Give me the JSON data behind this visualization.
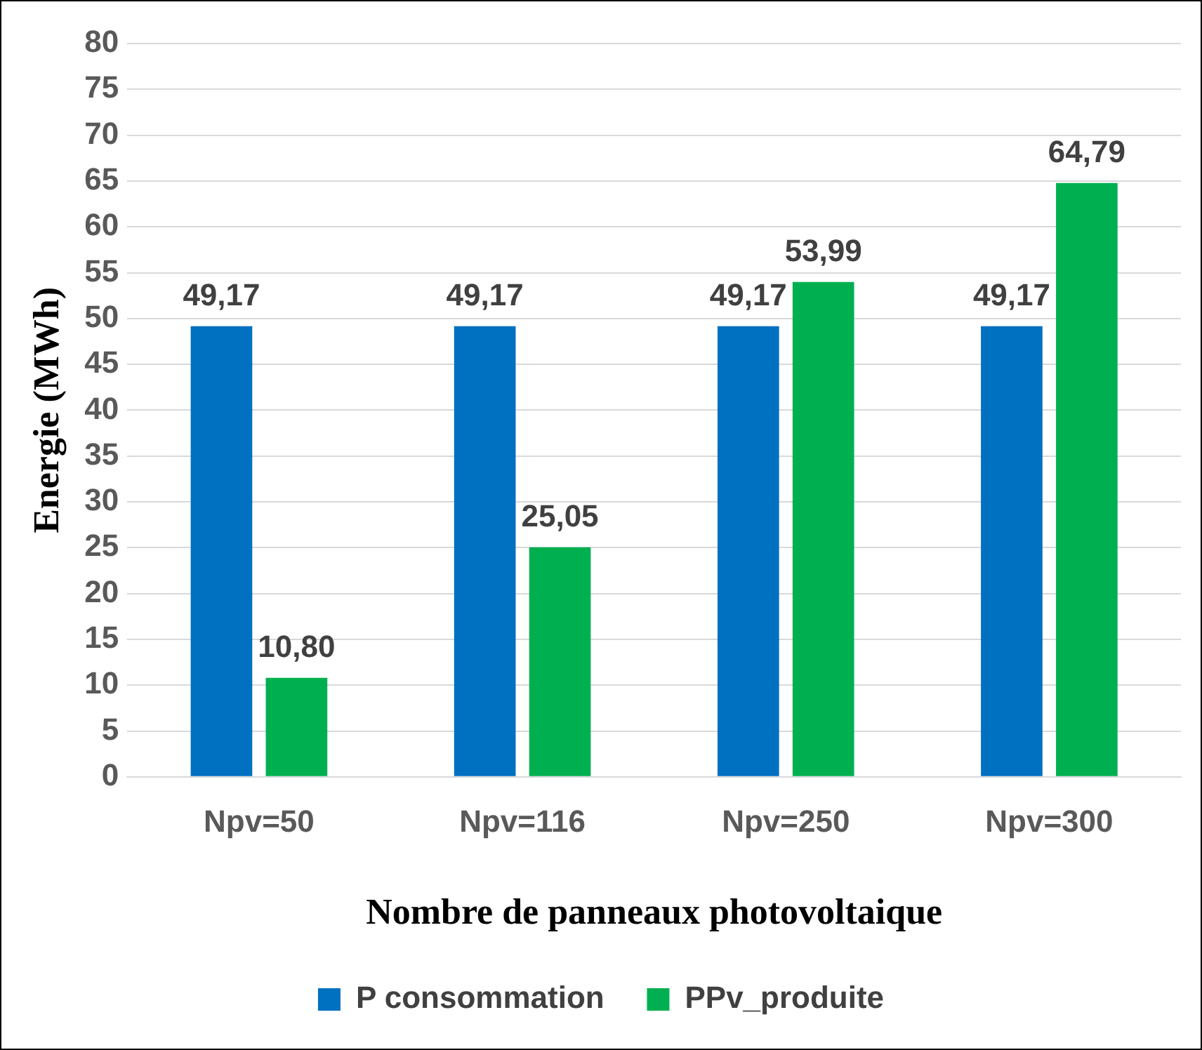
{
  "chart_data": {
    "type": "bar",
    "xlabel": "Nombre de panneaux photovoltaique",
    "ylabel": "Energie (MWh)",
    "categories": [
      "Npv=50",
      "Npv=116",
      "Npv=250",
      "Npv=300"
    ],
    "series": [
      {
        "name": "P consommation",
        "color": "#0070c0",
        "values": [
          49.17,
          49.17,
          49.17,
          49.17
        ],
        "value_labels": [
          "49,17",
          "49,17",
          "49,17",
          "49,17"
        ]
      },
      {
        "name": "PPv_produite",
        "color": "#00b050",
        "values": [
          10.8,
          25.05,
          53.99,
          64.79
        ],
        "value_labels": [
          "10,80",
          "25,05",
          "53,99",
          "64,79"
        ]
      }
    ],
    "ylim": [
      0,
      80
    ],
    "yticks": [
      0,
      5,
      10,
      15,
      20,
      25,
      30,
      35,
      40,
      45,
      50,
      55,
      60,
      65,
      70,
      75,
      80
    ],
    "grid": "y",
    "legend": "bottom"
  }
}
